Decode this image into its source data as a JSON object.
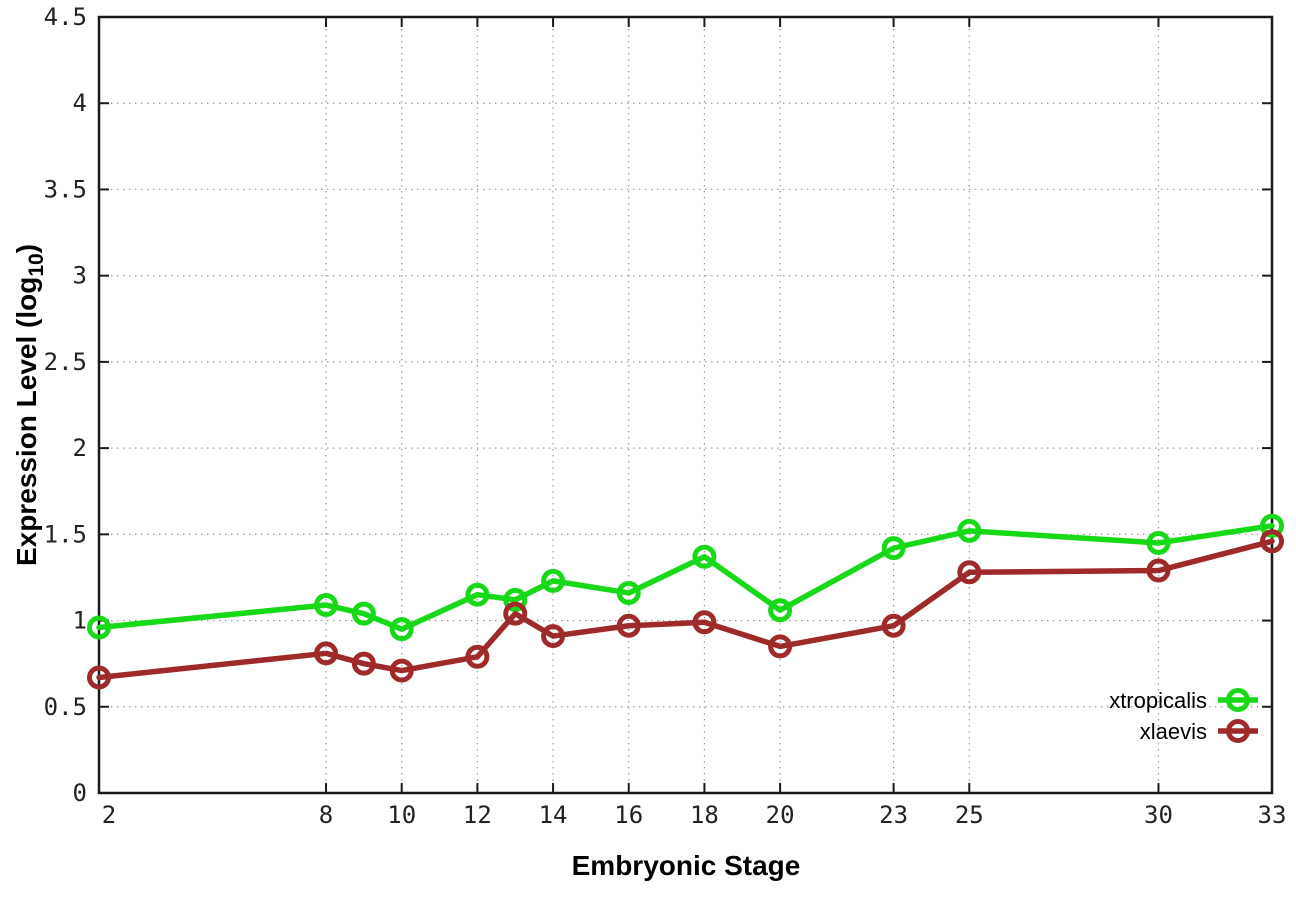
{
  "chart_data": {
    "type": "line",
    "title": "",
    "xlabel": "Embryonic Stage",
    "ylabel": "Expression Level (log10)",
    "ylabel_parts": {
      "pre": "Expression Level (log",
      "sub": "10",
      "post": ")"
    },
    "x": [
      2,
      8,
      9,
      10,
      12,
      13,
      14,
      16,
      18,
      20,
      23,
      25,
      30,
      33
    ],
    "xlim": [
      2,
      33
    ],
    "ylim": [
      0,
      4.5
    ],
    "xtick_labels": [
      "2",
      "8",
      "10",
      "12",
      "14",
      "16",
      "18",
      "20",
      "23",
      "25",
      "30",
      "33"
    ],
    "xtick_values": [
      2,
      8,
      10,
      12,
      14,
      16,
      18,
      20,
      23,
      25,
      30,
      33
    ],
    "ytick_labels": [
      "0",
      "0.5",
      "1",
      "1.5",
      "2",
      "2.5",
      "3",
      "3.5",
      "4",
      "4.5"
    ],
    "ytick_values": [
      0,
      0.5,
      1,
      1.5,
      2,
      2.5,
      3,
      3.5,
      4,
      4.5
    ],
    "grid": true,
    "legend_position": "inside-lower-right",
    "series": [
      {
        "name": "xtropicalis",
        "color": "#17d917",
        "marker": "open-circle",
        "values": [
          0.96,
          1.09,
          1.04,
          0.95,
          1.15,
          1.12,
          1.23,
          1.16,
          1.37,
          1.06,
          1.42,
          1.52,
          1.45,
          1.55
        ]
      },
      {
        "name": "xlaevis",
        "color": "#9e2a2a",
        "marker": "open-circle",
        "values": [
          0.67,
          0.81,
          0.75,
          0.71,
          0.79,
          1.04,
          0.91,
          0.97,
          0.99,
          0.85,
          0.97,
          1.28,
          1.29,
          1.46
        ]
      }
    ],
    "colors": {
      "grid": "#999999",
      "border": "#1a1a1a",
      "text": "#000000"
    }
  }
}
